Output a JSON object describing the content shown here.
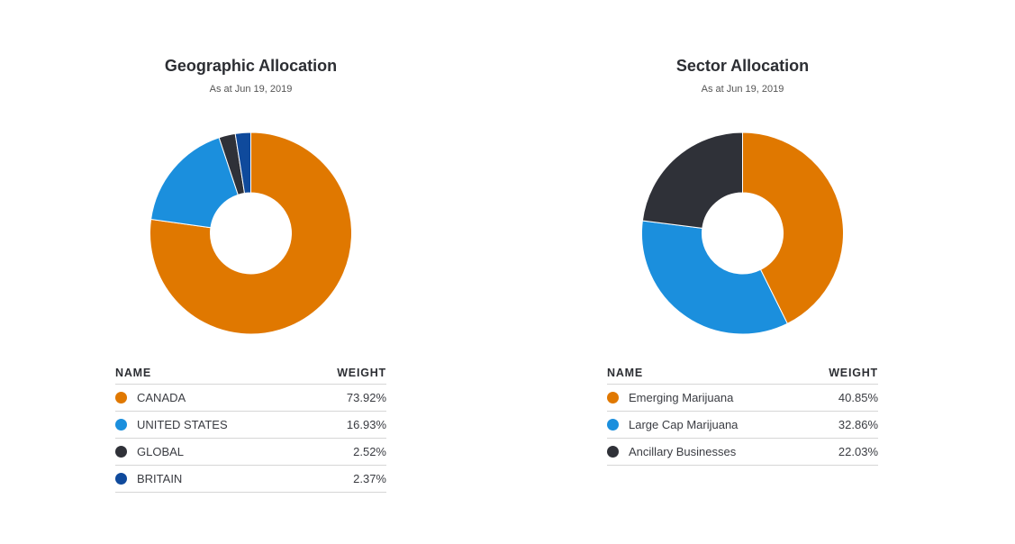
{
  "chart_data": [
    {
      "type": "pie",
      "title": "Geographic Allocation",
      "subtitle": "As at Jun 19, 2019",
      "columns": {
        "name": "NAME",
        "weight": "WEIGHT"
      },
      "categories": [
        "CANADA",
        "UNITED STATES",
        "GLOBAL",
        "BRITAIN"
      ],
      "values": [
        73.92,
        16.93,
        2.52,
        2.37
      ],
      "value_labels": [
        "73.92%",
        "16.93%",
        "2.52%",
        "2.37%"
      ],
      "colors": [
        "#e07800",
        "#1b8fdd",
        "#2f3138",
        "#0f4a9c"
      ]
    },
    {
      "type": "pie",
      "title": "Sector Allocation",
      "subtitle": "As at Jun 19, 2019",
      "columns": {
        "name": "NAME",
        "weight": "WEIGHT"
      },
      "categories": [
        "Emerging Marijuana",
        "Large Cap Marijuana",
        "Ancillary Businesses"
      ],
      "values": [
        40.85,
        32.86,
        22.03
      ],
      "value_labels": [
        "40.85%",
        "32.86%",
        "22.03%"
      ],
      "colors": [
        "#e07800",
        "#1b8fdd",
        "#2f3138"
      ]
    }
  ]
}
